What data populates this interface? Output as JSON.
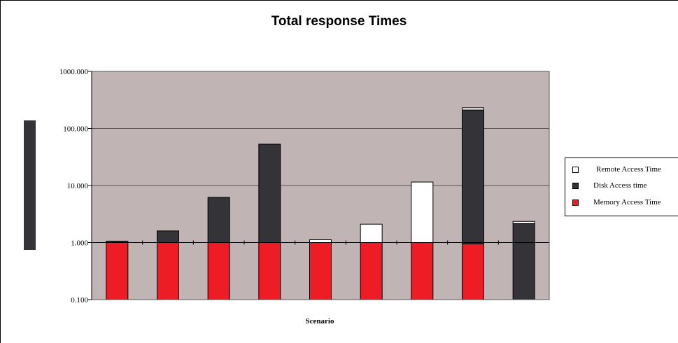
{
  "chart_data": {
    "type": "bar",
    "stacked": true,
    "log_scale": true,
    "title": "Total response Times",
    "xlabel": "Scenario",
    "ylabel": "",
    "ylim": [
      0.1,
      1000
    ],
    "y_ticks": [
      "0.100",
      "1.000",
      "10.000",
      "100.000",
      "1000.000"
    ],
    "y_tick_values": [
      0.1,
      1,
      10,
      100,
      1000
    ],
    "categories": [
      "",
      "",
      "",
      "",
      "",
      "",
      "",
      "",
      ""
    ],
    "grid": true,
    "legend_position": "right",
    "series": [
      {
        "name": "Memory Access Time",
        "color": "#ee1c24",
        "values": [
          1.0,
          1.0,
          1.0,
          1.0,
          1.0,
          1.0,
          1.0,
          0.95,
          0
        ]
      },
      {
        "name": "Disk Access time",
        "color": "#333338",
        "values": [
          0.06,
          0.6,
          5.2,
          52,
          0,
          0,
          0,
          210,
          2.15
        ]
      },
      {
        "name": "Remote Access Time",
        "color": "#ffffff",
        "values": [
          0,
          0,
          0,
          0,
          0.12,
          1.1,
          10.5,
          20,
          0.2
        ]
      }
    ],
    "plot_background": "#c0b4b4"
  },
  "legend": {
    "items": [
      {
        "label": "Remote Access Time",
        "color": "#ffffff"
      },
      {
        "label": "Disk Access time",
        "color": "#333338"
      },
      {
        "label": "Memory Access Time",
        "color": "#ee1c24"
      }
    ]
  }
}
